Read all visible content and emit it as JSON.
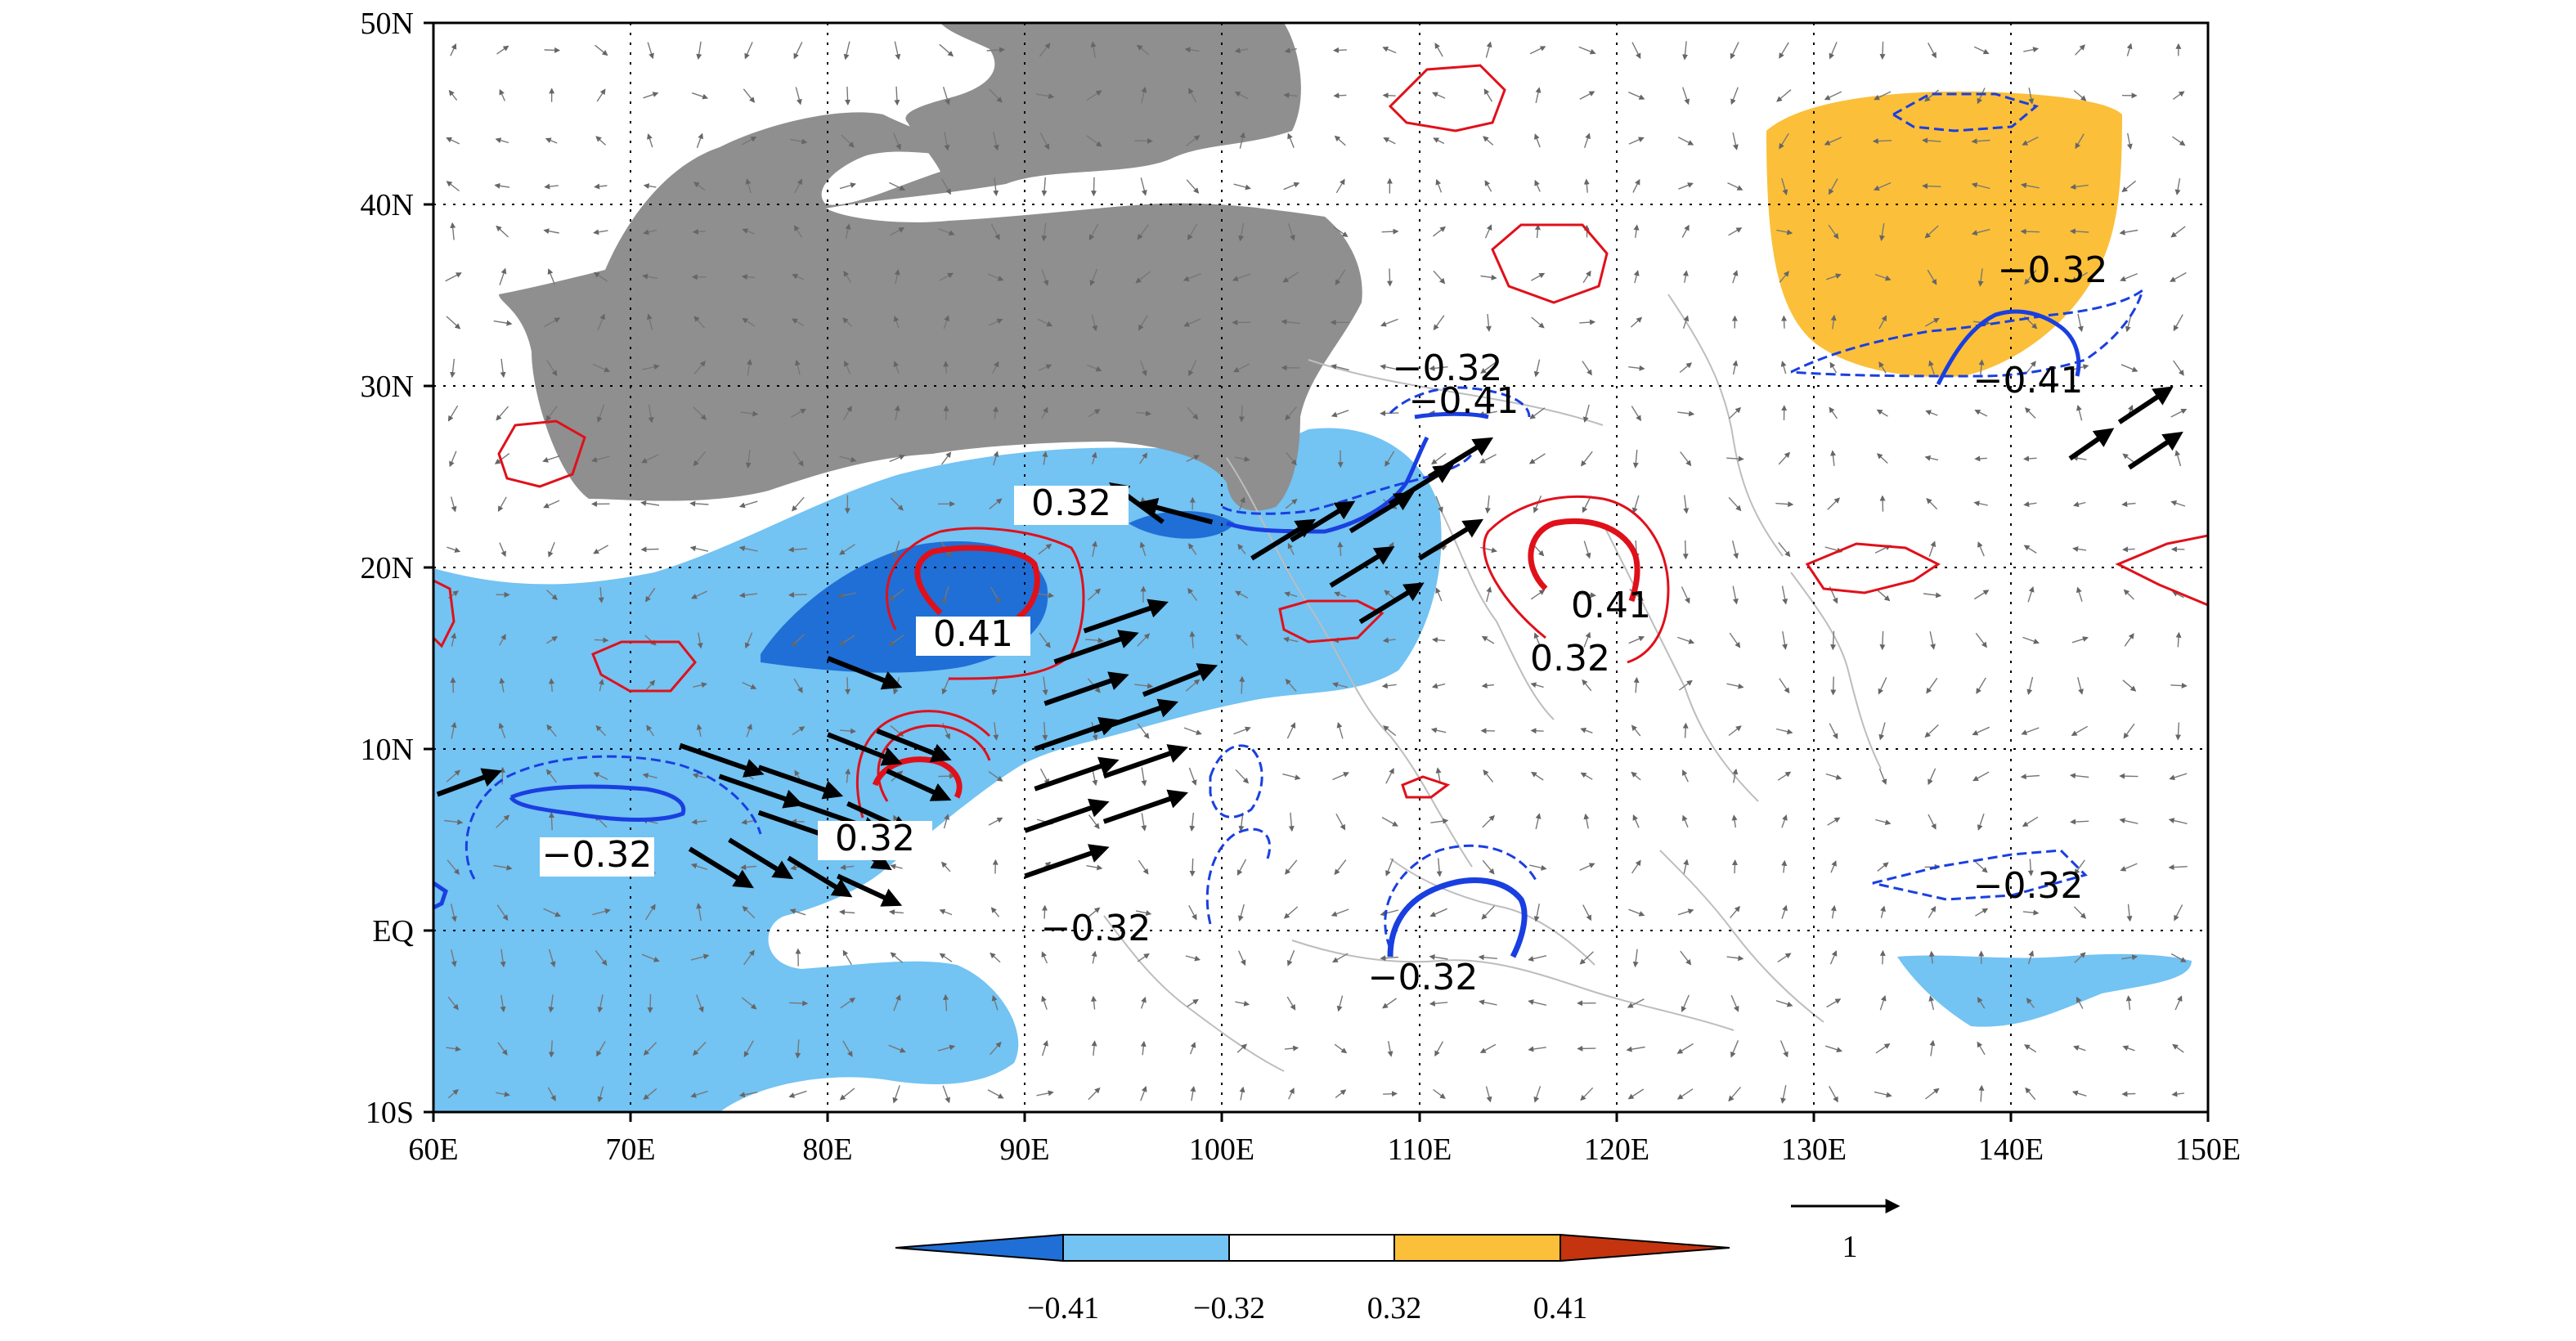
{
  "map": {
    "projection": "equirectangular",
    "lon_range": [
      60,
      150
    ],
    "lat_range": [
      -10,
      50
    ],
    "lon_ticks": [
      "60E",
      "70E",
      "80E",
      "90E",
      "100E",
      "110E",
      "120E",
      "130E",
      "140E",
      "150E"
    ],
    "lat_ticks": [
      "10S",
      "EQ",
      "10N",
      "20N",
      "30N",
      "40N",
      "50N"
    ],
    "gridlines": true,
    "gridline_style": "dotted",
    "coastlines": true,
    "vector_field": true,
    "colors": {
      "strong_negative": "#1f6fd6",
      "negative": "#73c3f3",
      "neutral": "#ffffff",
      "positive": "#fbbf3a",
      "strong_positive": "#c4340f",
      "topography_mask": "#8f8f8f",
      "contour_positive": "#e0101a",
      "contour_negative": "#1a3fe0",
      "significant_vector": "#000000",
      "vector": "#666666"
    }
  },
  "contour_labels": [
    "0.32",
    "0.41",
    "-0.32",
    "0.32",
    "-0.32",
    "-0.32",
    "-0.32",
    "-0.41",
    "0.41",
    "0.32",
    "-0.32",
    "-0.41",
    "-0.32"
  ],
  "colorbar": {
    "levels": [
      "-0.41",
      "-0.32",
      "0.32",
      "0.41"
    ],
    "extend": "both"
  },
  "reference_vector": {
    "label": "1"
  }
}
